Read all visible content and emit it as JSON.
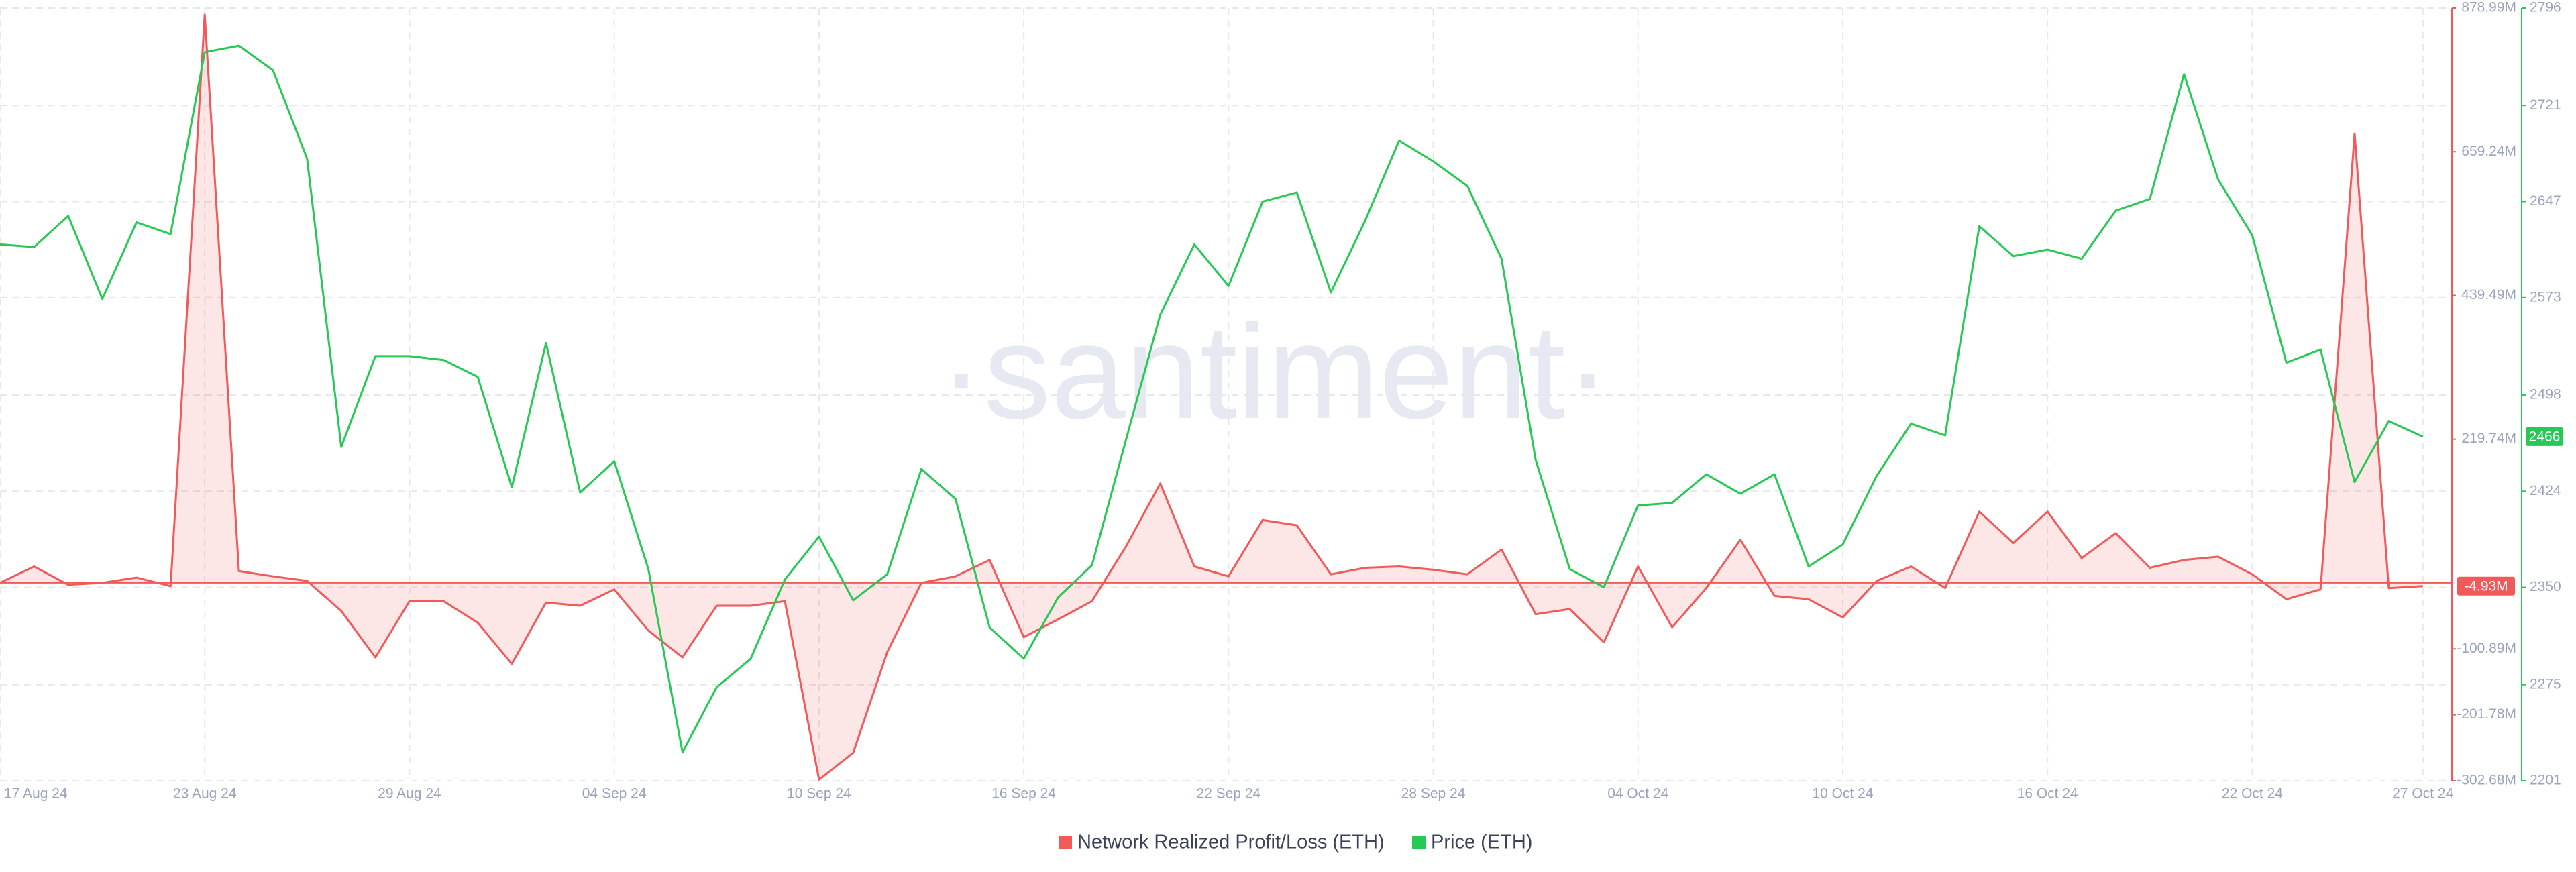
{
  "chart_data": {
    "type": "line",
    "watermark": "·santiment·",
    "categories": [
      "17 Aug 24",
      null,
      null,
      null,
      null,
      null,
      "23 Aug 24",
      null,
      null,
      null,
      null,
      null,
      "29 Aug 24",
      null,
      null,
      null,
      null,
      null,
      "04 Sep 24",
      null,
      null,
      null,
      null,
      null,
      "10 Sep 24",
      null,
      null,
      null,
      null,
      null,
      "16 Sep 24",
      null,
      null,
      null,
      null,
      null,
      "22 Sep 24",
      null,
      null,
      null,
      null,
      null,
      "28 Sep 24",
      null,
      null,
      null,
      null,
      null,
      "04 Oct 24",
      null,
      null,
      null,
      null,
      null,
      "10 Oct 24",
      null,
      null,
      null,
      null,
      null,
      "16 Oct 24",
      null,
      null,
      null,
      null,
      null,
      "22 Oct 24",
      null,
      null,
      null,
      null,
      "27 Oct 24"
    ],
    "series": [
      {
        "name": "Network Realized Profit/Loss (ETH)",
        "color": "#f25a5a",
        "area": true,
        "values": [
          0,
          25,
          -3,
          0,
          8,
          -5,
          869,
          18,
          10,
          3,
          -43,
          -114,
          -28,
          -28,
          -61,
          -124,
          -30,
          -35,
          -10,
          -73,
          -114,
          -35,
          -35,
          -28,
          -301,
          -260,
          -106,
          0,
          10,
          35,
          -83,
          -56,
          -28,
          56,
          152,
          25,
          10,
          96,
          88,
          13,
          23,
          25,
          20,
          13,
          51,
          -48,
          -40,
          -91,
          25,
          -68,
          -8,
          66,
          -20,
          -25,
          -53,
          3,
          25,
          -8,
          109,
          61,
          109,
          38,
          76,
          23,
          35,
          40,
          13,
          -25,
          -10,
          687,
          -8,
          -4.93
        ],
        "value_labels": [
          null,
          null,
          null,
          null,
          null,
          null,
          null,
          null,
          null,
          null,
          null,
          null,
          null,
          null,
          null,
          null,
          null,
          null,
          null,
          null,
          null,
          null,
          null,
          null,
          null,
          null,
          null,
          null,
          null,
          null,
          null,
          null,
          null,
          null,
          null,
          null,
          null,
          null,
          null,
          null,
          null,
          null,
          null,
          null,
          null,
          null,
          null,
          null,
          null,
          null,
          null,
          null,
          null,
          null,
          null,
          null,
          null,
          null,
          null,
          null,
          null,
          null,
          null,
          null,
          null,
          null,
          null,
          null,
          null,
          null,
          null,
          "-4.93M"
        ]
      },
      {
        "name": "Price (ETH)",
        "color": "#26c953",
        "axis": "y2",
        "values": [
          2614,
          2612,
          2636,
          2572,
          2631,
          2622,
          2762,
          2767,
          2748,
          2680,
          2458,
          2528,
          2528,
          2525,
          2512,
          2427,
          2538,
          2423,
          2447,
          2364,
          2223,
          2273,
          2295,
          2356,
          2389,
          2340,
          2360,
          2441,
          2418,
          2319,
          2295,
          2342,
          2367,
          2464,
          2560,
          2614,
          2582,
          2647,
          2654,
          2577,
          2632,
          2694,
          2678,
          2659,
          2603,
          2448,
          2364,
          2350,
          2413,
          2415,
          2437,
          2422,
          2437,
          2366,
          2383,
          2436,
          2476,
          2467,
          2628,
          2605,
          2610,
          2603,
          2640,
          2649,
          2745,
          2664,
          2621,
          2523,
          2533,
          2431,
          2478,
          2466
        ]
      }
    ],
    "ylim": [
      -302.68,
      878.99
    ],
    "yticks": [
      {
        "value": 878.99,
        "label": "878.99M"
      },
      {
        "value": 659.24,
        "label": "659.24M"
      },
      {
        "value": 439.49,
        "label": "439.49M"
      },
      {
        "value": 219.74,
        "label": "219.74M"
      },
      {
        "value": -100.89,
        "label": "-100.89M"
      },
      {
        "value": -201.78,
        "label": "-201.78M"
      },
      {
        "value": -302.68,
        "label": "-302.68M"
      }
    ],
    "y2lim": [
      2201,
      2796
    ],
    "y2ticks": [
      2201,
      2275,
      2350,
      2424,
      2498,
      2573,
      2647,
      2721,
      2796
    ],
    "grid": true
  }
}
